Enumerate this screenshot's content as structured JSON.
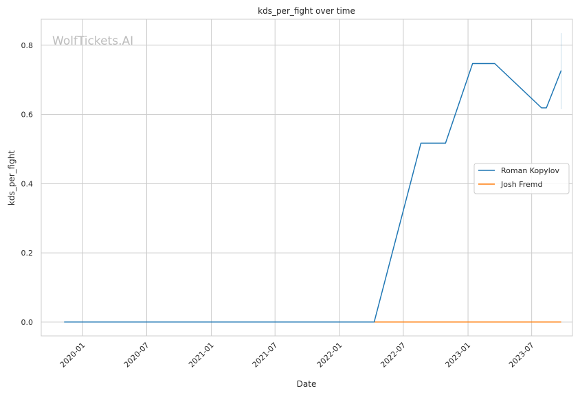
{
  "chart_data": {
    "type": "line",
    "title": "kds_per_fight over time",
    "xlabel": "Date",
    "ylabel": "kds_per_fight",
    "watermark": "WolfTickets.AI",
    "x_ticks": [
      "2020-01",
      "2020-07",
      "2021-01",
      "2021-07",
      "2022-01",
      "2022-07",
      "2023-01",
      "2023-07"
    ],
    "y_ticks": [
      "0.0",
      "0.2",
      "0.4",
      "0.6",
      "0.8"
    ],
    "xlim": [
      "2019-09-05",
      "2023-10-25"
    ],
    "ylim": [
      -0.04,
      0.875
    ],
    "grid": true,
    "legend_position": "center-right",
    "series": [
      {
        "name": "Roman Kopylov",
        "color": "#1f77b4",
        "points": [
          {
            "date": "2019-11-09",
            "value": 0.0
          },
          {
            "date": "2022-04-09",
            "value": 0.0
          },
          {
            "date": "2022-08-20",
            "value": 0.517
          },
          {
            "date": "2022-10-29",
            "value": 0.517
          },
          {
            "date": "2023-01-14",
            "value": 0.747
          },
          {
            "date": "2023-03-18",
            "value": 0.747
          },
          {
            "date": "2023-07-29",
            "value": 0.619
          },
          {
            "date": "2023-08-12",
            "value": 0.619
          },
          {
            "date": "2023-09-23",
            "value": 0.727
          }
        ],
        "band": {
          "date": "2023-09-23",
          "low": 0.615,
          "high": 0.835
        }
      },
      {
        "name": "Josh Fremd",
        "color": "#ff7f0e",
        "points": [
          {
            "date": "2022-04-09",
            "value": 0.0
          },
          {
            "date": "2023-09-23",
            "value": 0.0
          }
        ]
      }
    ]
  }
}
